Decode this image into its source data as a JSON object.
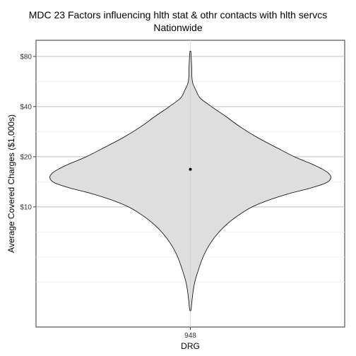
{
  "chart_data": {
    "type": "violin",
    "title": "MDC 23 Factors influencing hlth stat & othr contacts with hlth servcs",
    "subtitle": "Nationwide",
    "xlabel": "DRG",
    "ylabel": "Average Covered Charges ($1,000s)",
    "scale": "log2",
    "categories": [
      "948"
    ],
    "y_ticks": [
      {
        "value": 10,
        "label": "$10"
      },
      {
        "value": 20,
        "label": "$20"
      },
      {
        "value": 40,
        "label": "$40"
      },
      {
        "value": 80,
        "label": "$80"
      }
    ],
    "ylim": [
      1.9,
      100
    ],
    "series": [
      {
        "category": "948",
        "fill": "#dedede",
        "stroke": "#000000",
        "center_point": 16.8,
        "range": [
          2.4,
          86
        ],
        "density_profile": [
          [
            86,
            0.003
          ],
          [
            80,
            0.006
          ],
          [
            70,
            0.009
          ],
          [
            60,
            0.011
          ],
          [
            55,
            0.018
          ],
          [
            50,
            0.04
          ],
          [
            45,
            0.07
          ],
          [
            40,
            0.15
          ],
          [
            35,
            0.25
          ],
          [
            30,
            0.36
          ],
          [
            26,
            0.48
          ],
          [
            23,
            0.6
          ],
          [
            20,
            0.74
          ],
          [
            18,
            0.87
          ],
          [
            17,
            0.93
          ],
          [
            16,
            0.98
          ],
          [
            15,
            1.0
          ],
          [
            14,
            0.97
          ],
          [
            13,
            0.86
          ],
          [
            12,
            0.7
          ],
          [
            11,
            0.56
          ],
          [
            10,
            0.44
          ],
          [
            9,
            0.35
          ],
          [
            8,
            0.27
          ],
          [
            7,
            0.2
          ],
          [
            6,
            0.14
          ],
          [
            5,
            0.09
          ],
          [
            4,
            0.05
          ],
          [
            3.5,
            0.03
          ],
          [
            3,
            0.017
          ],
          [
            2.6,
            0.009
          ],
          [
            2.4,
            0.004
          ]
        ]
      }
    ],
    "grid": true,
    "background": "#ffffff",
    "point_color": "#000000"
  }
}
